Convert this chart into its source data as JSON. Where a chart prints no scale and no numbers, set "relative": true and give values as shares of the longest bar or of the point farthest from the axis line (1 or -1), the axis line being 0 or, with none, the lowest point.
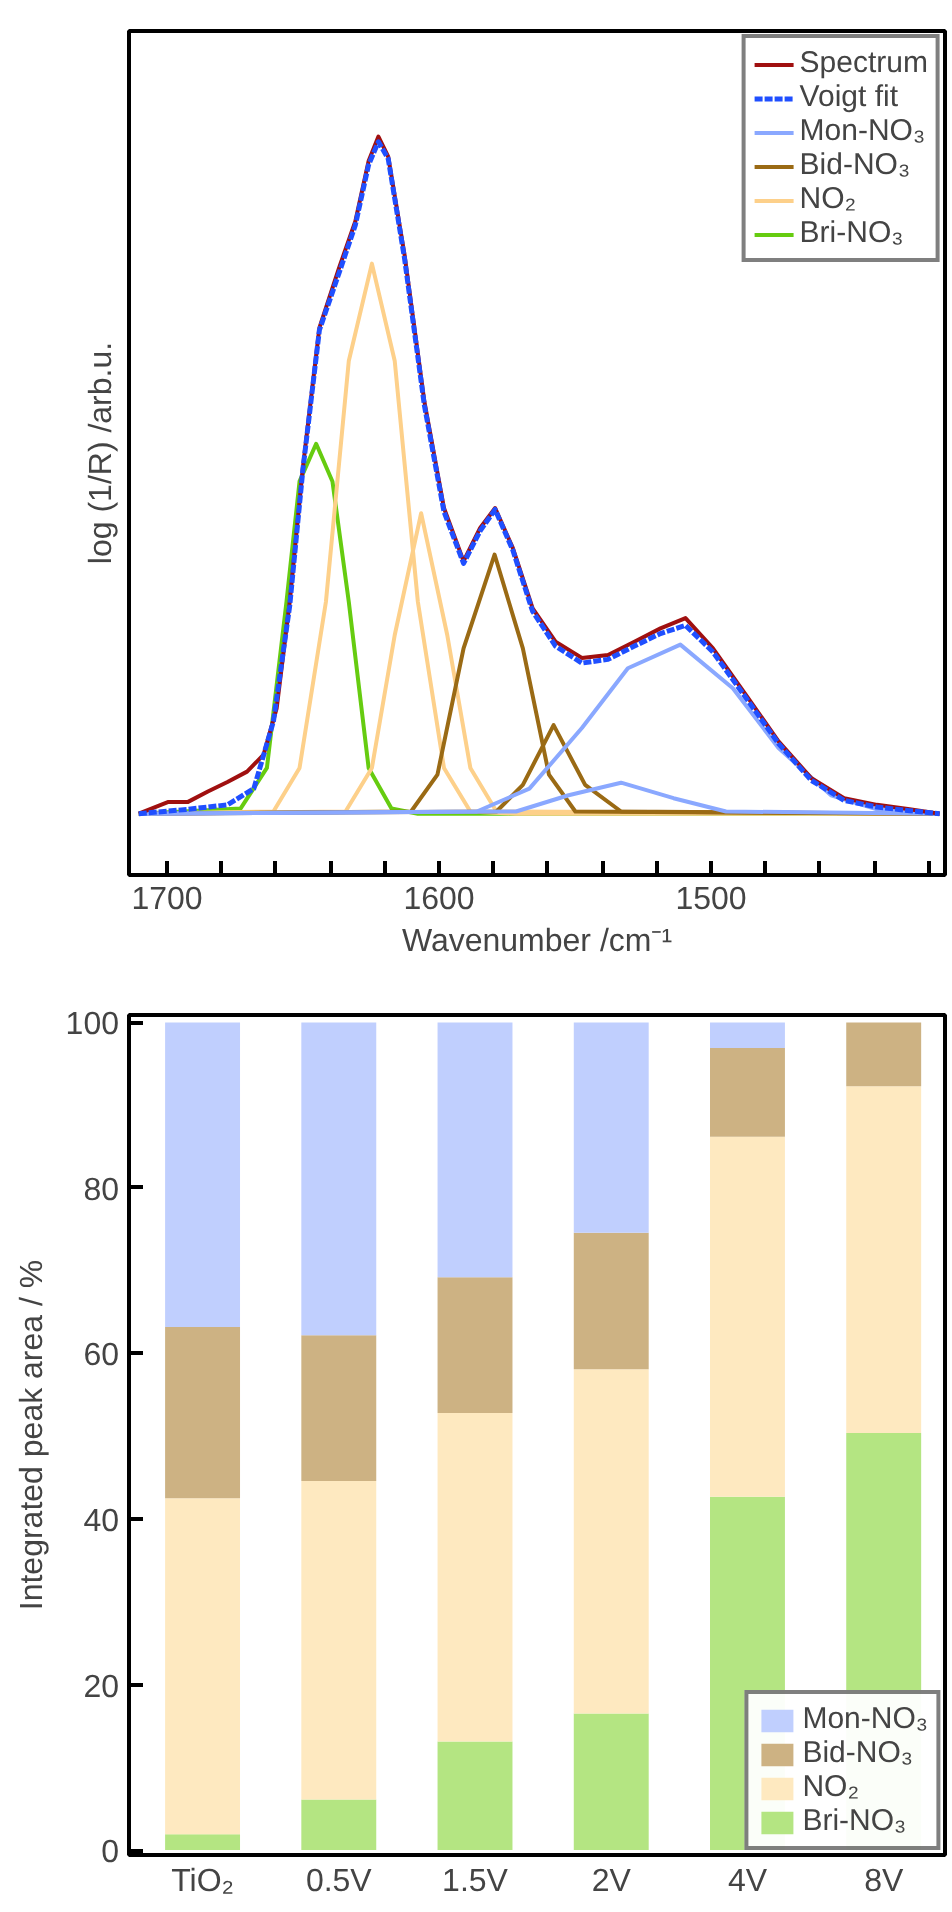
{
  "chart_data": [
    {
      "type": "line",
      "xlabel": "Wavenumber /cm⁻¹",
      "ylabel": "log (1/R) /arb.u.",
      "relative": true,
      "tick_labels": "x",
      "legend": "top right",
      "xlim": [
        1714,
        1414
      ],
      "xticks": [
        {
          "value": 1420,
          "label": null
        },
        {
          "value": 1440,
          "label": null
        },
        {
          "value": 1460,
          "label": null
        },
        {
          "value": 1480,
          "label": null
        },
        1500,
        {
          "value": 1520,
          "label": null
        },
        {
          "value": 1540,
          "label": null
        },
        {
          "value": 1560,
          "label": null
        },
        {
          "value": 1580,
          "label": null
        },
        1600,
        {
          "value": 1620,
          "label": null
        },
        {
          "value": 1640,
          "label": null
        },
        {
          "value": 1660,
          "label": null
        },
        {
          "value": 1680,
          "label": null
        },
        1700
      ],
      "series": [
        {
          "name": "Spectrum",
          "color": "#a01010",
          "line_style": "solid",
          "x": [
            1710.4,
            1699.5,
            1692.3,
            1685,
            1677.8,
            1670.6,
            1664.5,
            1659.7,
            1654.9,
            1650.1,
            1644.0,
            1636.8,
            1630.8,
            1625.9,
            1622.3,
            1618.7,
            1612.7,
            1605.4,
            1598.2,
            1591.0,
            1584.9,
            1579.4,
            1572.9,
            1565.6,
            1557.2,
            1547.5,
            1537.9,
            1528.2,
            1518.6,
            1509.4,
            1499.3,
            1487.2,
            1475.2,
            1463.1,
            1451.1,
            1439.0,
            1427.0,
            1416.0
          ],
          "values": [
            0.083,
            0.099,
            0.099,
            0.113,
            0.126,
            0.14,
            0.163,
            0.226,
            0.37,
            0.551,
            0.741,
            0.822,
            0.885,
            0.967,
            1.0,
            0.973,
            0.84,
            0.641,
            0.497,
            0.425,
            0.47,
            0.497,
            0.443,
            0.361,
            0.316,
            0.294,
            0.298,
            0.316,
            0.334,
            0.348,
            0.307,
            0.244,
            0.181,
            0.131,
            0.104,
            0.095,
            0.089,
            0.083
          ]
        },
        {
          "name": "Voigt fit",
          "color": "#1f4fff",
          "line_style": "dashed",
          "x": [
            1710.4,
            1692.3,
            1677.8,
            1668.1,
            1660.9,
            1654.9,
            1650.1,
            1644.0,
            1636.8,
            1630.8,
            1625.9,
            1622.3,
            1618.7,
            1612.7,
            1605.4,
            1598.2,
            1591.0,
            1584.9,
            1579.4,
            1572.9,
            1565.6,
            1557.2,
            1547.5,
            1537.9,
            1528.2,
            1518.6,
            1509.4,
            1499.3,
            1487.2,
            1475.2,
            1463.1,
            1451.1,
            1439.0,
            1427.0,
            1416.0
          ],
          "values": [
            0.083,
            0.089,
            0.095,
            0.117,
            0.208,
            0.365,
            0.548,
            0.738,
            0.815,
            0.88,
            0.962,
            0.993,
            0.97,
            0.835,
            0.636,
            0.492,
            0.422,
            0.466,
            0.495,
            0.44,
            0.357,
            0.31,
            0.287,
            0.292,
            0.31,
            0.327,
            0.338,
            0.302,
            0.24,
            0.178,
            0.128,
            0.101,
            0.092,
            0.087,
            0.083
          ]
        },
        {
          "name": "Mon-NO₃",
          "color": "#8aa8ff",
          "line_style": "solid",
          "x": [
            1710.4,
            1586.1,
            1566.8,
            1547.5,
            1530.6,
            1511.3,
            1492.0,
            1475.2,
            1455.9,
            1439.0,
            1416.0
          ],
          "values": [
            0.083,
            0.086,
            0.117,
            0.199,
            0.28,
            0.312,
            0.253,
            0.172,
            0.108,
            0.089,
            0.083
          ]
        },
        {
          "color": "#8aa8ff",
          "line_style": "solid",
          "x": [
            1710.4,
            1571.7,
            1552.4,
            1533.1,
            1513.8,
            1494.5,
            1416.0
          ],
          "values": [
            0.083,
            0.086,
            0.108,
            0.125,
            0.104,
            0.086,
            0.083
          ]
        },
        {
          "name": "Bid-NO₃",
          "color": "#9a6a14",
          "line_style": "solid",
          "x": [
            1710.4,
            1610.3,
            1600.6,
            1591.0,
            1579.6,
            1569.2,
            1559.6,
            1549.9,
            1416.0
          ],
          "values": [
            0.083,
            0.086,
            0.136,
            0.307,
            0.434,
            0.307,
            0.136,
            0.086,
            0.083
          ]
        },
        {
          "color": "#9a6a14",
          "line_style": "solid",
          "x": [
            1710.4,
            1578.9,
            1569.2,
            1557.9,
            1546.3,
            1533.1,
            1416.0
          ],
          "values": [
            0.083,
            0.086,
            0.122,
            0.203,
            0.122,
            0.086,
            0.083
          ]
        },
        {
          "name": "NO₂",
          "color": "#fdd08a",
          "line_style": "solid",
          "x": [
            1710.4,
            1660.9,
            1651.3,
            1641.6,
            1633.2,
            1624.7,
            1616.3,
            1607.8,
            1598.2,
            1588.5,
            1571.7,
            1416.0
          ],
          "values": [
            0.083,
            0.086,
            0.145,
            0.37,
            0.696,
            0.828,
            0.696,
            0.37,
            0.145,
            0.086,
            0.083,
            0.083
          ]
        },
        {
          "color": "#fdd08a",
          "line_style": "solid",
          "x": [
            1710.4,
            1634.4,
            1624.7,
            1616.3,
            1606.6,
            1597.0,
            1588.5,
            1578.9,
            1416.0
          ],
          "values": [
            0.083,
            0.086,
            0.145,
            0.325,
            0.49,
            0.325,
            0.145,
            0.086,
            0.083
          ]
        },
        {
          "name": "Bri-NO₃",
          "color": "#66cc10",
          "line_style": "solid",
          "x": [
            1710.4,
            1673.0,
            1663.3,
            1656.1,
            1651.3,
            1645.2,
            1639.2,
            1633.2,
            1625.9,
            1617.5,
            1607.8,
            1416.0
          ],
          "values": [
            0.083,
            0.09,
            0.145,
            0.37,
            0.533,
            0.584,
            0.533,
            0.37,
            0.145,
            0.09,
            0.083,
            0.083
          ]
        }
      ]
    },
    {
      "type": "bar",
      "stacked": true,
      "ylabel": "Integrated peak area / %",
      "legend": "bottom right",
      "categories": [
        "TiO₂",
        "0.5V",
        "1.5V",
        "2V",
        "4V",
        "8V"
      ],
      "ylim": [
        -0.6,
        100.9
      ],
      "yticks": [
        0,
        20,
        40,
        60,
        80,
        100
      ],
      "series": [
        {
          "name": "Bri-NO₃",
          "color": "#b4e582",
          "values": [
            1.9,
            6.1,
            13.1,
            16.5,
            42.7,
            50.4
          ]
        },
        {
          "name": "NO₂",
          "color": "#fee9c0",
          "values": [
            40.6,
            38.5,
            39.7,
            41.6,
            43.5,
            41.9
          ]
        },
        {
          "name": "Bid-NO₃",
          "color": "#cdb283",
          "values": [
            20.7,
            17.6,
            16.4,
            16.5,
            10.7,
            7.7
          ]
        },
        {
          "name": "Mon-NO₃",
          "color": "#c0cffe",
          "values": [
            36.8,
            37.8,
            30.8,
            25.4,
            3.1,
            0
          ]
        }
      ]
    }
  ]
}
